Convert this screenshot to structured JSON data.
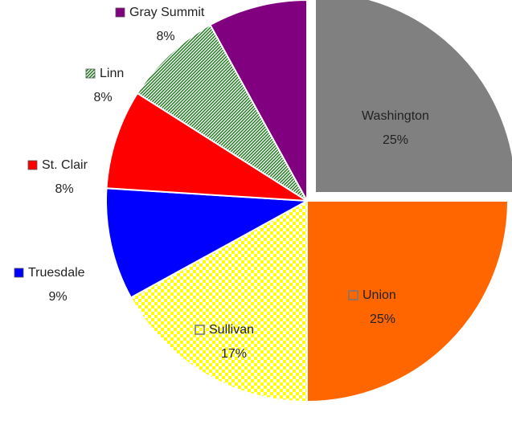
{
  "chart_data": {
    "type": "pie",
    "categories": [
      "Washington",
      "Union",
      "Sullivan",
      "Truesdale",
      "St. Clair",
      "Linn",
      "Gray Summit"
    ],
    "values": [
      25,
      25,
      17,
      9,
      8,
      8,
      8
    ],
    "value_labels": [
      "25%",
      "25%",
      "17%",
      "9%",
      "8%",
      "8%",
      "8%"
    ],
    "colors": [
      "#808080",
      "#ff6600",
      "#ffff00",
      "#0000ff",
      "#ff0000",
      "#1a7a1a",
      "#800080"
    ],
    "patterns": [
      "solid",
      "solid",
      "checker",
      "solid",
      "solid",
      "dots",
      "solid"
    ]
  }
}
